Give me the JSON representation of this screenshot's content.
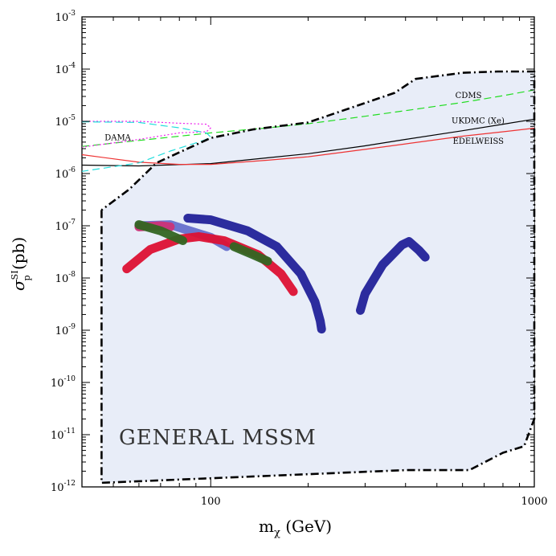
{
  "chart_data": {
    "type": "line",
    "title": "",
    "xlabel": "mχ (GeV)",
    "ylabel": "σp^SI (pb)",
    "xscale": "log",
    "yscale": "log",
    "xlim": [
      40,
      1000
    ],
    "ylim": [
      1e-12,
      0.001
    ],
    "x_tick_labels": [
      {
        "value": 100,
        "label": "100"
      },
      {
        "value": 1000,
        "label": "1000"
      }
    ],
    "y_tick_labels": [
      {
        "value": 0.001,
        "base": "10",
        "exp": "-3"
      },
      {
        "value": 0.0001,
        "base": "10",
        "exp": "-4"
      },
      {
        "value": 1e-05,
        "base": "10",
        "exp": "-5"
      },
      {
        "value": 1e-06,
        "base": "10",
        "exp": "-6"
      },
      {
        "value": 1e-07,
        "base": "10",
        "exp": "-7"
      },
      {
        "value": 1e-08,
        "base": "10",
        "exp": "-8"
      },
      {
        "value": 1e-09,
        "base": "10",
        "exp": "-9"
      },
      {
        "value": 1e-10,
        "base": "10",
        "exp": "-10"
      },
      {
        "value": 1e-11,
        "base": "10",
        "exp": "-11"
      },
      {
        "value": 1e-12,
        "base": "10",
        "exp": "-12"
      }
    ],
    "region": {
      "name": "GENERAL MSSM",
      "label": "GENERAL MSSM",
      "fill": "#e8edf8",
      "boundary": [
        [
          46,
          2e-07
        ],
        [
          46,
          1.2e-12
        ],
        [
          400,
          2.1e-12
        ],
        [
          630,
          2.1e-12
        ],
        [
          800,
          4.5e-12
        ],
        [
          930,
          6e-12
        ],
        [
          1000,
          2e-11
        ],
        [
          1000,
          9e-05
        ],
        [
          770,
          9e-05
        ],
        [
          600,
          8.5e-05
        ],
        [
          430,
          6.5e-05
        ],
        [
          370,
          3.5e-05
        ],
        [
          200,
          9.5e-06
        ],
        [
          135,
          7e-06
        ],
        [
          100,
          4.8e-06
        ],
        [
          68,
          1.6e-06
        ],
        [
          56,
          5e-07
        ],
        [
          46,
          2e-07
        ]
      ]
    },
    "series": [
      {
        "name": "CDMS",
        "label": "CDMS",
        "style": "dashed",
        "color": "#22dd22",
        "x": [
          40,
          60,
          100,
          150,
          200,
          300,
          400,
          600,
          800,
          1000
        ],
        "y": [
          3.3e-06,
          4.3e-06,
          6e-06,
          7.5e-06,
          9e-06,
          1.25e-05,
          1.6e-05,
          2.3e-05,
          3.1e-05,
          4e-05
        ]
      },
      {
        "name": "UKDMC (Xe)",
        "label": "UKDMC (Xe)",
        "style": "solid",
        "color": "#000000",
        "x": [
          40,
          60,
          100,
          150,
          200,
          300,
          400,
          600,
          800,
          1000
        ],
        "y": [
          1.45e-06,
          1.4e-06,
          1.55e-06,
          2e-06,
          2.4e-06,
          3.4e-06,
          4.5e-06,
          6.6e-06,
          8.8e-06,
          1.1e-05
        ]
      },
      {
        "name": "EDELWEISS",
        "label": "EDELWEISS",
        "style": "solid",
        "color": "#ee3333",
        "x": [
          40,
          60,
          80,
          100,
          150,
          200,
          300,
          400,
          600,
          800,
          1000
        ],
        "y": [
          2.3e-06,
          1.65e-06,
          1.5e-06,
          1.5e-06,
          1.8e-06,
          2.1e-06,
          2.9e-06,
          3.7e-06,
          5.2e-06,
          6.3e-06,
          7.4e-06
        ]
      },
      {
        "name": "DAMA magenta",
        "label": "DAMA",
        "style": "dotted",
        "color": "#ee22ee",
        "x": [
          40,
          60,
          80,
          97,
          100,
          97,
          80,
          60,
          40
        ],
        "y": [
          1e-05,
          1e-05,
          9.2e-06,
          8.8e-06,
          7.5e-06,
          6.3e-06,
          6e-06,
          4.5e-06,
          3.2e-06
        ]
      },
      {
        "name": "DAMA cyan",
        "style": "dashed",
        "color": "#22dddd",
        "x": [
          40,
          60,
          80,
          97,
          100,
          95,
          75,
          60,
          40
        ],
        "y": [
          9.8e-06,
          9.5e-06,
          7.5e-06,
          6e-06,
          5e-06,
          4.3e-06,
          2.7e-06,
          1.6e-06,
          1.1e-06
        ]
      },
      {
        "name": "GMSSM boundary",
        "style": "dashdot",
        "color": "#000000",
        "x": [
          46,
          46,
          400,
          630,
          800,
          930,
          1000,
          1000,
          770,
          600,
          430,
          370,
          200,
          135,
          100,
          68,
          56,
          46
        ],
        "y": [
          2e-07,
          1.2e-12,
          2.1e-12,
          2.1e-12,
          4.5e-12,
          6e-12,
          2e-11,
          9e-05,
          9e-05,
          8.5e-05,
          6.5e-05,
          3.5e-05,
          9.5e-06,
          7e-06,
          4.8e-06,
          1.6e-06,
          5e-07,
          2e-07
        ]
      }
    ],
    "bands": [
      {
        "name": "blue light band",
        "color": "#6670cc",
        "x": [
          60,
          75,
          100,
          112
        ],
        "y": [
          1e-07,
          1.05e-07,
          6e-08,
          4e-08
        ]
      },
      {
        "name": "red band",
        "color": "#dd1133",
        "x": [
          55,
          65,
          80,
          92,
          110,
          140,
          165,
          180
        ],
        "y": [
          1.5e-08,
          3.5e-08,
          5.6e-08,
          6.2e-08,
          5.2e-08,
          2.8e-08,
          1.2e-08,
          5.5e-09
        ]
      },
      {
        "name": "pink band",
        "color": "#cc3377",
        "x": [
          60,
          70,
          75
        ],
        "y": [
          9.5e-08,
          1e-07,
          9.5e-08
        ]
      },
      {
        "name": "green band upper",
        "color": "#336622",
        "x": [
          60,
          70,
          82
        ],
        "y": [
          1.05e-07,
          8e-08,
          5.2e-08
        ]
      },
      {
        "name": "green band lower",
        "color": "#336622",
        "x": [
          118,
          135,
          150
        ],
        "y": [
          4e-08,
          2.8e-08,
          2.1e-08
        ]
      },
      {
        "name": "blue dark band",
        "color": "#222299",
        "x": [
          85,
          100,
          130,
          160,
          190,
          210,
          218,
          220
        ],
        "y": [
          1.4e-07,
          1.3e-07,
          8e-08,
          4e-08,
          1.2e-08,
          3.5e-09,
          1.5e-09,
          1.05e-09
        ]
      },
      {
        "name": "blue right band",
        "color": "#222299",
        "x": [
          290,
          300,
          340,
          390,
          410,
          440,
          460
        ],
        "y": [
          2.4e-09,
          5e-09,
          1.8e-08,
          4.3e-08,
          5e-08,
          3.4e-08,
          2.5e-08
        ]
      }
    ],
    "annotations": [
      {
        "text": "CDMS",
        "x": 570,
        "y": 3.2e-05
      },
      {
        "text": "UKDMC (Xe)",
        "x": 555,
        "y": 1.05e-05
      },
      {
        "text": "EDELWEISS",
        "x": 560,
        "y": 4.3e-06
      },
      {
        "text": "DAMA",
        "x": 47,
        "y": 5e-06
      }
    ]
  }
}
